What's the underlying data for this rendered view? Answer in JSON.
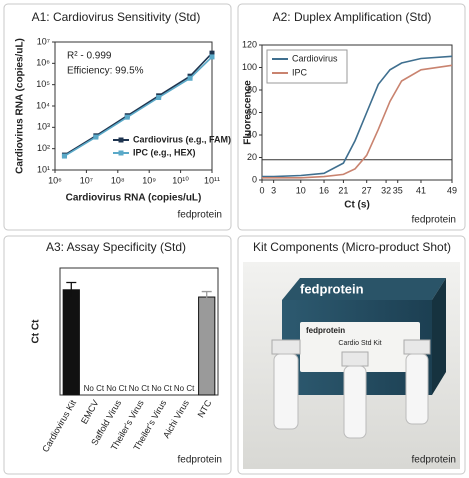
{
  "chart_data": [
    {
      "type": "line",
      "title": "A1: Cardiovirus Sensitivity (Std)",
      "xlabel": "Cardiovirus RNA (copies/uL)",
      "ylabel": "Cardiovirus RNA (copies/uL)",
      "xscale": "log",
      "yscale": "log",
      "markers": true,
      "legend": "lower right",
      "annotations": [
        "R² - 0.999",
        "Efficiency: 99.5%"
      ],
      "credit": "fedprotein",
      "x": [
        2000000,
        20000000,
        200000000,
        2000000000,
        20000000000,
        100000000000
      ],
      "series": [
        {
          "name": "Cardiovirus (e.g., FAM)",
          "color": "#1f3550",
          "values": [
            50,
            400,
            3500,
            30000,
            250000,
            3000000
          ]
        },
        {
          "name": "IPC (e.g., HEX)",
          "color": "#5aa9c8",
          "values": [
            45,
            350,
            3000,
            25000,
            200000,
            2000000
          ]
        }
      ],
      "xlim": [
        1000000,
        100000000000
      ],
      "xticks": [
        {
          "value": 1000000,
          "label": "10⁶"
        },
        {
          "value": 10000000,
          "label": "10⁷"
        },
        {
          "value": 100000000,
          "label": "10⁸"
        },
        {
          "value": 1000000000,
          "label": "10⁹"
        },
        {
          "value": 10000000000,
          "label": "10¹⁰"
        },
        {
          "value": 100000000000,
          "label": "10¹¹"
        }
      ],
      "ylim": [
        10,
        10000000
      ],
      "yticks": [
        {
          "value": 10,
          "label": "10¹"
        },
        {
          "value": 100,
          "label": "10²"
        },
        {
          "value": 1000,
          "label": "10³"
        },
        {
          "value": 10000,
          "label": "10⁴"
        },
        {
          "value": 100000,
          "label": "10⁵"
        },
        {
          "value": 1000000,
          "label": "10⁶"
        },
        {
          "value": 10000000,
          "label": "10⁷"
        }
      ]
    },
    {
      "type": "line",
      "title": "A2: Duplex Amplification (Std)",
      "xlabel": "Ct (s)",
      "ylabel": "Fluorescence",
      "legend": "upper left",
      "credit": "fedprotein",
      "threshold": 18,
      "x": [
        0,
        3,
        10,
        16,
        21,
        24,
        27,
        30,
        33,
        36,
        41,
        49
      ],
      "series": [
        {
          "name": "Cardiovirus",
          "color": "#3f6f8f",
          "values": [
            3,
            3,
            4,
            6,
            15,
            35,
            60,
            85,
            98,
            104,
            108,
            110
          ]
        },
        {
          "name": "IPC",
          "color": "#c9836f",
          "values": [
            2,
            2,
            2,
            3,
            5,
            10,
            22,
            45,
            70,
            88,
            98,
            102
          ]
        }
      ],
      "xlim": [
        0,
        49
      ],
      "xticks": [
        0,
        3,
        10,
        16,
        21,
        27,
        32,
        35,
        41,
        49
      ],
      "ylim": [
        0,
        120
      ],
      "yticks": [
        0,
        20,
        40,
        60,
        80,
        100,
        120
      ]
    },
    {
      "type": "bar",
      "title": "A3: Assay Specificity (Std)",
      "ylabel": "Ct Ct",
      "credit": "fedprotein",
      "categories": [
        "Cardiovirus Kit",
        "EMCV",
        "Saffold Virus",
        "Theiler's Virus",
        "Theiler's Virus",
        "Aichi Virus",
        "NTC"
      ],
      "values": [
        29,
        null,
        null,
        null,
        null,
        null,
        27
      ],
      "value_labels": [
        null,
        "No Ct",
        "No Ct",
        "No Ct",
        "No Ct",
        "No Ct",
        null
      ],
      "errors": [
        2,
        null,
        null,
        null,
        null,
        null,
        1.5
      ],
      "colors": [
        "#111111",
        "#111111",
        "#111111",
        "#111111",
        "#111111",
        "#111111",
        "#9a9a9a"
      ],
      "ylim": [
        0,
        35
      ]
    }
  ],
  "kit_panel": {
    "title": "Kit Components (Micro-product Shot)",
    "box_brand": "fedprotein",
    "box_label_brand": "fedprotein",
    "box_label": "Cardio Std Kit",
    "credit": "fedprotein"
  }
}
